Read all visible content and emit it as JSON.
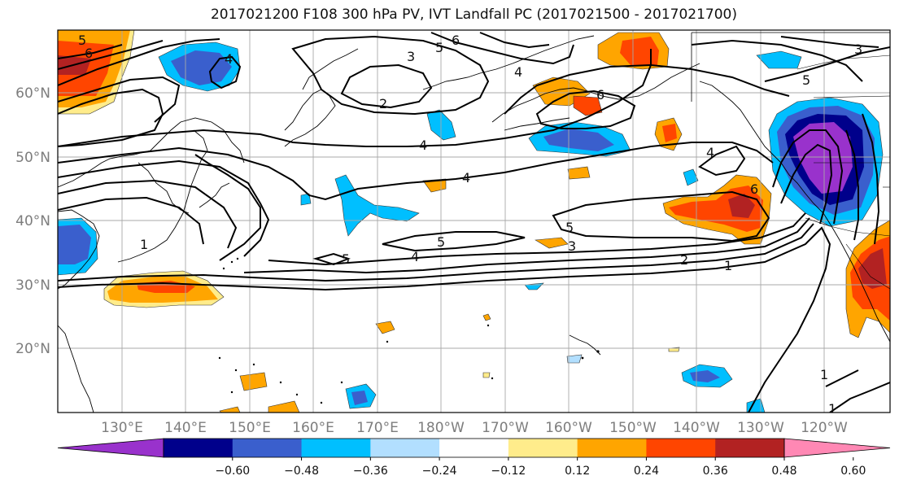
{
  "title": "2017021200 F108 300 hPa PV, IVT Landfall PC (2017021500 - 2017021700)",
  "map": {
    "lat_labels": [
      "60°N",
      "50°N",
      "40°N",
      "30°N",
      "20°N"
    ],
    "lon_labels": [
      "130°E",
      "140°E",
      "150°E",
      "160°E",
      "170°E",
      "180°W",
      "170°W",
      "160°W",
      "150°W",
      "140°W",
      "130°W",
      "120°W"
    ],
    "pv_contour_levels": [
      "1",
      "2",
      "3",
      "4",
      "5",
      "6"
    ],
    "contour_labels": [
      "5",
      "6",
      "4",
      "3",
      "2",
      "6",
      "5",
      "4",
      "1",
      "4",
      "5",
      "4",
      "5",
      "3",
      "2",
      "1",
      "5",
      "6",
      "4",
      "3",
      "5",
      "6",
      "4",
      "1",
      "1"
    ]
  },
  "colorbar": {
    "colors": [
      "#9932cc",
      "#00008b",
      "#3a5fcd",
      "#00bfff",
      "#b2dfff",
      "#ffffff",
      "#ffec8b",
      "#ffa500",
      "#ff4500",
      "#b22222",
      "#ff88b4"
    ],
    "tick_labels": [
      "−0.60",
      "−0.48",
      "−0.36",
      "−0.24",
      "−0.12",
      "0.12",
      "0.24",
      "0.36",
      "0.48",
      "0.60"
    ],
    "extend": "both"
  }
}
